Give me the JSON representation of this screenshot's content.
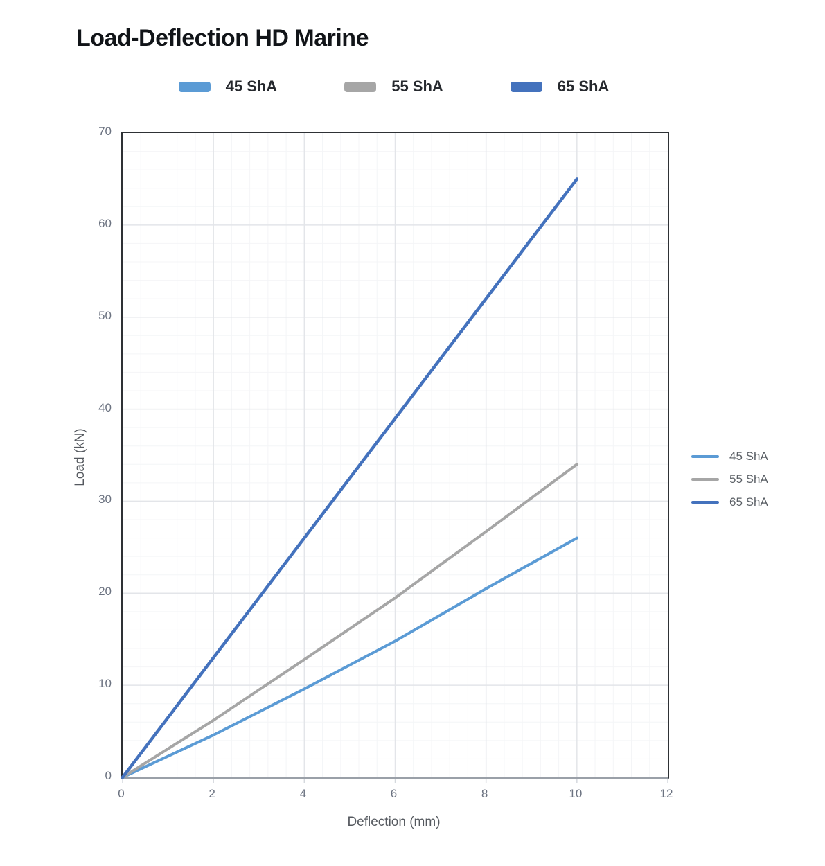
{
  "title": "Load-Deflection HD Marine",
  "top_legend": {
    "items": [
      {
        "label": "45 ShA",
        "color": "#5B9BD5"
      },
      {
        "label": "55 ShA",
        "color": "#A6A6A6"
      },
      {
        "label": "65 ShA",
        "color": "#4472BD"
      }
    ]
  },
  "side_legend": {
    "items": [
      {
        "label": "45 ShA",
        "color": "#5B9BD5"
      },
      {
        "label": "55 ShA",
        "color": "#A6A6A6"
      },
      {
        "label": "65 ShA",
        "color": "#4472BD"
      }
    ]
  },
  "chart_data": {
    "type": "line",
    "title": "Load-Deflection HD Marine",
    "xlabel": "Deflection (mm)",
    "ylabel": "Load (kN)",
    "x": [
      0,
      2,
      4,
      6,
      8,
      10
    ],
    "series": [
      {
        "name": "45 ShA",
        "color": "#5B9BD5",
        "stroke_width": 4,
        "values": [
          0,
          4.6,
          9.6,
          14.8,
          20.5,
          26
        ]
      },
      {
        "name": "55 ShA",
        "color": "#A6A6A6",
        "stroke_width": 4,
        "values": [
          0,
          6.2,
          12.8,
          19.5,
          26.7,
          34
        ]
      },
      {
        "name": "65 ShA",
        "color": "#4472BD",
        "stroke_width": 4.5,
        "values": [
          0,
          13,
          26,
          39,
          52,
          65
        ]
      }
    ],
    "xlim": [
      0,
      12
    ],
    "ylim": [
      0,
      70
    ],
    "x_ticks": [
      0,
      2,
      4,
      6,
      8,
      10,
      12
    ],
    "y_ticks": [
      0,
      10,
      20,
      30,
      40,
      50,
      60,
      70
    ],
    "x_minor_step": 0.4,
    "y_minor_step": 2,
    "grid": true,
    "legend_position": "right",
    "colors": {
      "grid_major": "#e3e5e9",
      "grid_minor": "#f4f5f7",
      "axis_bottom": "#9aa0a8",
      "plot_border": "#2e3135",
      "tick_mark": "#d4d8dd",
      "tick_label": "#6b7280",
      "axis_title": "#55595f",
      "chart_title": "#111418"
    }
  }
}
